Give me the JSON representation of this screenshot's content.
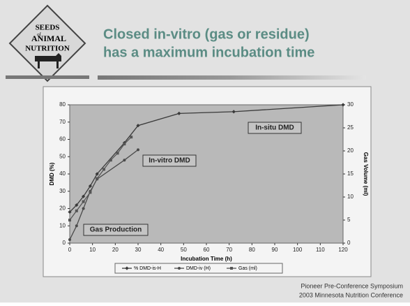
{
  "logo": {
    "lines": [
      "SEEDS",
      "of",
      "ANIMAL",
      "NUTRITION"
    ]
  },
  "chart_data": {
    "type": "line",
    "title": [
      "Closed in-vitro (gas or residue)",
      "has a maximum incubation time"
    ],
    "x_label": "Incubation Time (h)",
    "y_label": "DMD (%)",
    "y2_label": "Gas Volume (ml)",
    "xlim": [
      0,
      120
    ],
    "xticks": [
      0,
      10,
      20,
      30,
      40,
      50,
      60,
      70,
      80,
      90,
      100,
      110,
      120
    ],
    "ylim": [
      0,
      80
    ],
    "yticks": [
      0,
      10,
      20,
      30,
      40,
      50,
      60,
      70,
      80
    ],
    "y2lim": [
      0,
      30
    ],
    "y2ticks": [
      0,
      5,
      10,
      15,
      20,
      25,
      30
    ],
    "series": [
      {
        "name": "% DMD-is-H",
        "color": "#3a3a3a",
        "marker": "diamond",
        "x": [
          0,
          3,
          6,
          9,
          12,
          24,
          30,
          48,
          72,
          120
        ],
        "values": [
          18,
          22,
          27,
          33,
          40,
          58,
          68,
          75,
          76,
          80
        ]
      },
      {
        "name": "DMD-iv (H)",
        "color": "#4a4a4a",
        "marker": "circle",
        "x": [
          0,
          3,
          6,
          9,
          12,
          24,
          30
        ],
        "values": [
          2,
          10,
          20,
          30,
          37,
          48,
          54
        ]
      },
      {
        "name": "Gas (ml)",
        "color": "#555555",
        "marker": "square",
        "axis": "y2",
        "x": [
          0,
          3,
          6,
          9,
          12,
          15,
          18,
          21,
          24,
          27
        ],
        "values": [
          5,
          7,
          9,
          11,
          14,
          16,
          18,
          19.5,
          21.5,
          23
        ]
      }
    ],
    "annotations": [
      "In-situ DMD",
      "In-vitro DMD",
      "Gas Production"
    ]
  },
  "footer": [
    "Pioneer Pre-Conference Symposium",
    "2003 Minnesota Nutrition Conference"
  ]
}
